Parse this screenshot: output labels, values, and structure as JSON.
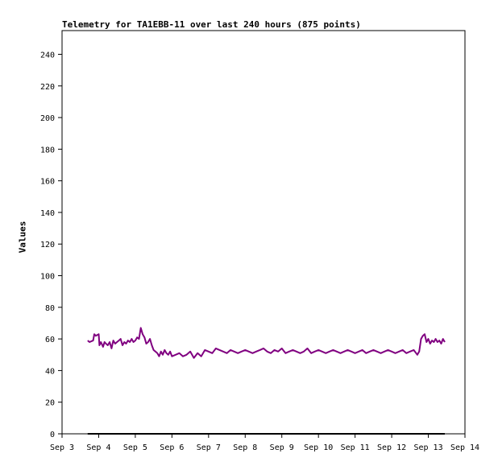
{
  "chart_data": {
    "type": "line",
    "title": "Telemetry for TA1EBB-11 over last 240 hours (875 points)",
    "xlabel": "",
    "ylabel": "Values",
    "ylim": [
      0,
      255
    ],
    "yticks": [
      0,
      20,
      40,
      60,
      80,
      100,
      120,
      140,
      160,
      180,
      200,
      220,
      240
    ],
    "xticks": [
      "Sep 3",
      "Sep 4",
      "Sep 5",
      "Sep 6",
      "Sep 7",
      "Sep 8",
      "Sep 9",
      "Sep 10",
      "Sep 11",
      "Sep 12",
      "Sep 13",
      "Sep 14"
    ],
    "xlim": [
      0,
      11
    ],
    "grid": false,
    "series": [
      {
        "color": "#800080",
        "x": [
          0.7,
          0.75,
          0.85,
          0.88,
          0.92,
          1.0,
          1.02,
          1.06,
          1.12,
          1.16,
          1.2,
          1.25,
          1.3,
          1.35,
          1.4,
          1.45,
          1.5,
          1.55,
          1.6,
          1.65,
          1.7,
          1.75,
          1.8,
          1.85,
          1.9,
          1.95,
          2.0,
          2.05,
          2.1,
          2.15,
          2.2,
          2.25,
          2.3,
          2.35,
          2.4,
          2.45,
          2.5,
          2.55,
          2.6,
          2.65,
          2.7,
          2.75,
          2.8,
          2.85,
          2.9,
          2.95,
          3.0,
          3.1,
          3.2,
          3.3,
          3.4,
          3.5,
          3.6,
          3.7,
          3.8,
          3.9,
          4.0,
          4.1,
          4.2,
          4.3,
          4.4,
          4.5,
          4.6,
          4.7,
          4.8,
          4.9,
          5.0,
          5.1,
          5.2,
          5.3,
          5.4,
          5.5,
          5.6,
          5.7,
          5.8,
          5.9,
          6.0,
          6.1,
          6.2,
          6.3,
          6.4,
          6.5,
          6.6,
          6.7,
          6.8,
          6.9,
          7.0,
          7.1,
          7.2,
          7.3,
          7.4,
          7.5,
          7.6,
          7.7,
          7.8,
          7.9,
          8.0,
          8.1,
          8.2,
          8.3,
          8.4,
          8.5,
          8.6,
          8.7,
          8.8,
          8.9,
          9.0,
          9.1,
          9.2,
          9.3,
          9.4,
          9.5,
          9.6,
          9.7,
          9.75,
          9.8,
          9.85,
          9.9,
          9.95,
          10.0,
          10.05,
          10.1,
          10.15,
          10.2,
          10.25,
          10.3,
          10.35,
          10.4,
          10.45
        ],
        "values": [
          59,
          58,
          59,
          63,
          62,
          63,
          56,
          58,
          55,
          58,
          57,
          56,
          58,
          54,
          59,
          57,
          58,
          59,
          60,
          56,
          58,
          57,
          59,
          58,
          60,
          58,
          59,
          61,
          60,
          67,
          63,
          61,
          57,
          58,
          60,
          56,
          53,
          52,
          51,
          49,
          52,
          50,
          53,
          51,
          50,
          52,
          49,
          50,
          51,
          49,
          50,
          52,
          48,
          51,
          49,
          53,
          52,
          51,
          54,
          53,
          52,
          51,
          53,
          52,
          51,
          52,
          53,
          52,
          51,
          52,
          53,
          54,
          52,
          51,
          53,
          52,
          54,
          51,
          52,
          53,
          52,
          51,
          52,
          54,
          51,
          52,
          53,
          52,
          51,
          52,
          53,
          52,
          51,
          52,
          53,
          52,
          51,
          52,
          53,
          51,
          52,
          53,
          52,
          51,
          52,
          53,
          52,
          51,
          52,
          53,
          51,
          52,
          53,
          50,
          52,
          60,
          62,
          63,
          58,
          60,
          57,
          59,
          58,
          60,
          58,
          59,
          57,
          60,
          58
        ]
      },
      {
        "color": "#000000",
        "x": [
          0.7,
          10.45
        ],
        "values": [
          0,
          0
        ]
      }
    ]
  }
}
